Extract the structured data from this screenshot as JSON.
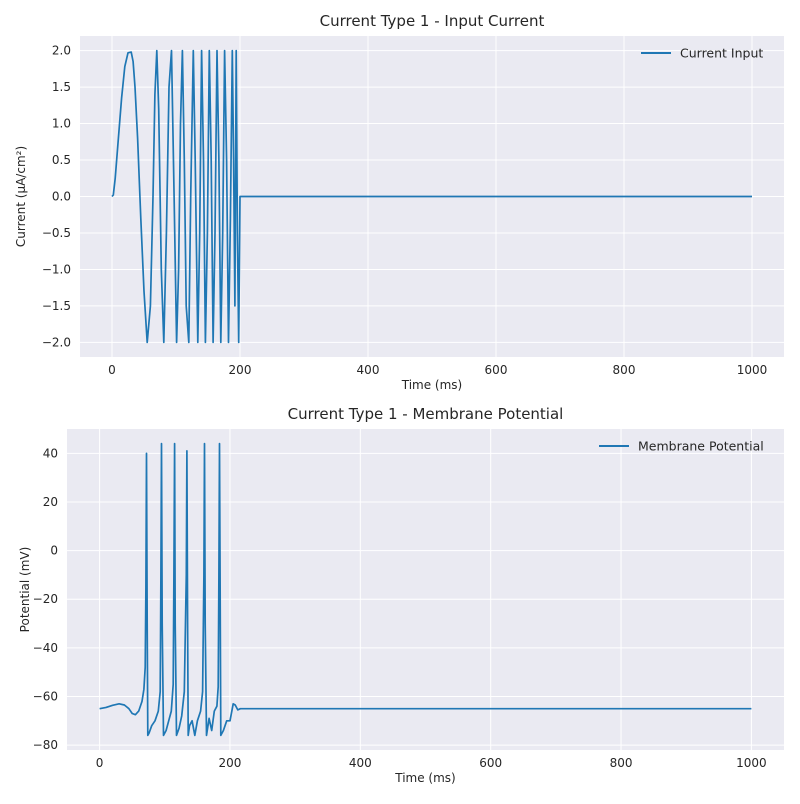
{
  "chart_data": [
    {
      "type": "line",
      "title": "Current Type 1 - Input Current",
      "xlabel": "Time (ms)",
      "ylabel": "Current (μA/cm²)",
      "xlim": [
        -50,
        1050
      ],
      "ylim": [
        -2.2,
        2.2
      ],
      "xticks": [
        0,
        200,
        400,
        600,
        800,
        1000
      ],
      "yticks": [
        2.0,
        1.5,
        1.0,
        0.5,
        0.0,
        -0.5,
        -1.0,
        -1.5,
        -2.0
      ],
      "ytick_labels": [
        "2.0",
        "1.5",
        "1.0",
        "0.5",
        "0.0",
        "−0.5",
        "−1.0",
        "−1.5",
        "−2.0"
      ],
      "grid": true,
      "legend": "top-right",
      "series": [
        {
          "name": "Current Input",
          "color": "#1f77b4",
          "x": [
            0,
            2,
            5,
            10,
            15,
            20,
            25,
            30,
            33,
            36,
            40,
            45,
            50,
            55,
            60,
            64,
            67,
            70,
            73,
            77,
            81,
            85,
            89,
            93,
            97,
            101,
            104,
            107,
            110,
            113,
            116,
            120,
            123,
            127,
            130,
            134,
            137,
            140,
            143,
            146,
            149,
            152,
            155,
            158,
            161,
            164,
            167,
            170,
            173,
            176,
            179,
            182,
            185,
            188,
            190,
            192,
            194,
            196,
            198,
            200,
            201,
            300,
            400,
            500,
            600,
            700,
            800,
            900,
            1000
          ],
          "y": [
            0.0,
            0.02,
            0.25,
            0.8,
            1.35,
            1.78,
            1.97,
            1.98,
            1.85,
            1.5,
            0.8,
            -0.3,
            -1.3,
            -2.0,
            -1.5,
            0.0,
            1.4,
            2.0,
            1.2,
            -1.0,
            -2.0,
            -0.5,
            1.5,
            2.0,
            0.0,
            -2.0,
            -1.0,
            1.0,
            2.0,
            0.5,
            -1.5,
            -2.0,
            0.0,
            2.0,
            0.5,
            -2.0,
            -0.5,
            2.0,
            0.5,
            -2.0,
            -0.5,
            2.0,
            0.5,
            -2.0,
            -0.5,
            2.0,
            0.5,
            -2.0,
            -0.5,
            2.0,
            0.5,
            -2.0,
            -0.3,
            2.0,
            0.5,
            -1.5,
            2.0,
            -0.5,
            -2.0,
            0.0,
            0.0,
            0.0,
            0.0,
            0.0,
            0.0,
            0.0,
            0.0,
            0.0,
            0.0
          ]
        }
      ]
    },
    {
      "type": "line",
      "title": "Current Type 1 - Membrane Potential",
      "xlabel": "Time (ms)",
      "ylabel": "Potential (mV)",
      "xlim": [
        -50,
        1050
      ],
      "ylim": [
        -82,
        50
      ],
      "xticks": [
        0,
        200,
        400,
        600,
        800,
        1000
      ],
      "yticks": [
        40,
        20,
        0,
        -20,
        -40,
        -60,
        -80
      ],
      "ytick_labels": [
        "40",
        "20",
        "0",
        "−20",
        "−40",
        "−60",
        "−80"
      ],
      "grid": true,
      "legend": "top-right",
      "series": [
        {
          "name": "Membrane Potential",
          "color": "#1f77b4",
          "x": [
            0,
            10,
            20,
            30,
            38,
            45,
            50,
            55,
            60,
            65,
            68,
            70,
            71,
            72,
            73,
            74,
            76,
            80,
            85,
            90,
            93,
            94,
            95,
            96,
            98,
            102,
            106,
            110,
            113,
            114,
            115,
            116,
            118,
            122,
            126,
            130,
            133,
            134,
            135,
            136,
            138,
            142,
            146,
            150,
            155,
            158,
            160,
            161,
            162,
            164,
            168,
            172,
            176,
            180,
            182,
            183,
            184,
            186,
            190,
            195,
            200,
            205,
            208,
            212,
            216,
            220,
            230,
            300,
            400,
            500,
            600,
            700,
            800,
            900,
            1000
          ],
          "y": [
            -65,
            -64.5,
            -63.6,
            -63,
            -63.5,
            -65,
            -67,
            -67.5,
            -66,
            -62,
            -57,
            -48,
            -15,
            40,
            -30,
            -76,
            -75,
            -72,
            -70,
            -66,
            -58,
            -10,
            44,
            -30,
            -76,
            -74,
            -70,
            -66,
            -55,
            -10,
            44,
            -30,
            -76,
            -73,
            -68,
            -58,
            -10,
            41,
            -30,
            -76,
            -72,
            -70,
            -76,
            -70,
            -66,
            -58,
            -10,
            44,
            -30,
            -76,
            -69,
            -74,
            -66,
            -64,
            -56,
            -10,
            44,
            -76,
            -74,
            -70,
            -70,
            -63,
            -63.5,
            -65.5,
            -65,
            -65,
            -65,
            -65,
            -65,
            -65,
            -65,
            -65,
            -65,
            -65,
            -65
          ]
        }
      ]
    }
  ]
}
